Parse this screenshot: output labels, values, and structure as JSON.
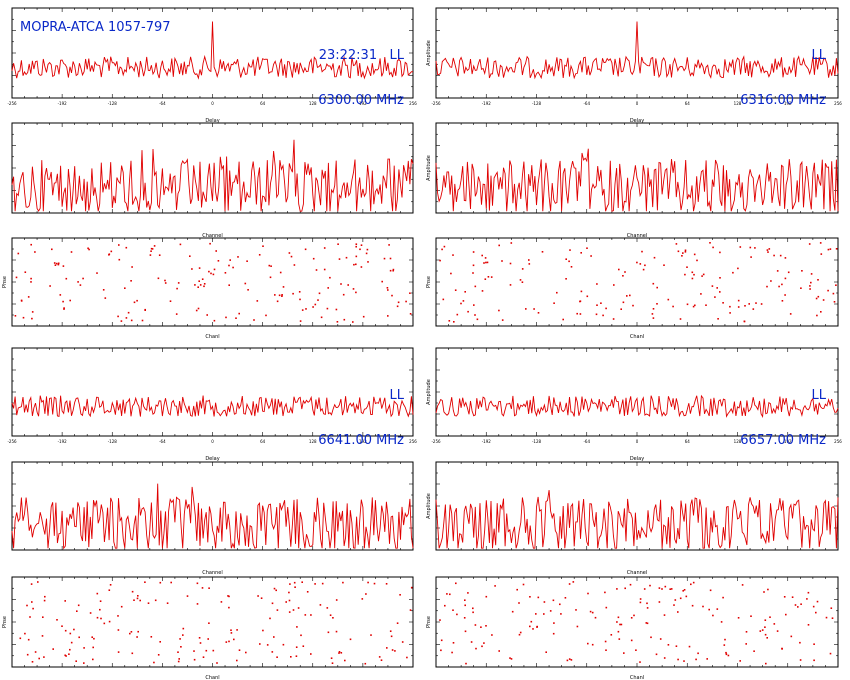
{
  "source_label": "MOPRA-ATCA 1057-797",
  "time": "23:22:31",
  "colors": {
    "trace": "#e00000",
    "axis": "#000000",
    "label": "#0a28c8",
    "background": "#ffffff"
  },
  "panels": [
    {
      "time": "23:22:31",
      "pol": "LL",
      "freq": "6300.00 MHz"
    },
    {
      "pol": "LL",
      "freq": "6316.00 MHz"
    },
    {
      "pol": "LL",
      "freq": "6641.00 MHz"
    },
    {
      "pol": "LL",
      "freq": "6657.00 MHz"
    }
  ],
  "chart_data": [
    {
      "type": "line",
      "panel": "6300.00 MHz delay spectrum",
      "xlabel": "Delay",
      "ylabel": "",
      "xlim": [
        -256,
        256
      ],
      "xticks": [
        "-256",
        "-192",
        "-128",
        "-64",
        "0",
        "64",
        "128",
        "192",
        "256"
      ],
      "feature": "single sharp spike at delay 0, noise elsewhere"
    },
    {
      "type": "line",
      "panel": "6316.00 MHz delay spectrum",
      "xlabel": "Delay",
      "ylabel": "Amplitude",
      "xlim": [
        -256,
        256
      ],
      "xticks": [
        "-256",
        "-192",
        "-128",
        "-64",
        "0",
        "64",
        "128",
        "192",
        "256"
      ],
      "feature": "single sharp spike at delay 0, noise elsewhere"
    },
    {
      "type": "line",
      "panel": "6300.00 MHz amplitude vs channel",
      "xlabel": "Channel",
      "ylabel": "",
      "xlim": [
        0,
        256
      ],
      "feature": "noise-like spectrum"
    },
    {
      "type": "line",
      "panel": "6316.00 MHz amplitude vs channel",
      "xlabel": "Channel",
      "ylabel": "Amplitude",
      "xlim": [
        0,
        256
      ],
      "feature": "noise-like spectrum"
    },
    {
      "type": "scatter",
      "panel": "6300.00 MHz phase vs channel",
      "xlabel": "Chanl",
      "ylabel": "Phse",
      "xlim": [
        0,
        256
      ],
      "feature": "random phase points"
    },
    {
      "type": "scatter",
      "panel": "6316.00 MHz phase vs channel",
      "xlabel": "Chanl",
      "ylabel": "Phse",
      "xlim": [
        0,
        256
      ],
      "feature": "random phase points"
    },
    {
      "type": "line",
      "panel": "6641.00 MHz delay spectrum",
      "xlabel": "Delay",
      "ylabel": "",
      "xlim": [
        -256,
        256
      ],
      "xticks": [
        "-256",
        "-192",
        "-128",
        "-64",
        "0",
        "64",
        "128",
        "192",
        "256"
      ],
      "feature": "noise only, no spike"
    },
    {
      "type": "line",
      "panel": "6657.00 MHz delay spectrum",
      "xlabel": "Delay",
      "ylabel": "Amplitude",
      "xlim": [
        -256,
        256
      ],
      "xticks": [
        "-256",
        "-192",
        "-128",
        "-64",
        "0",
        "64",
        "128",
        "192",
        "256"
      ],
      "feature": "noise only, no spike"
    },
    {
      "type": "line",
      "panel": "6641.00 MHz amplitude vs channel",
      "xlabel": "Channel",
      "ylabel": "",
      "xlim": [
        0,
        256
      ],
      "feature": "noise-like spectrum"
    },
    {
      "type": "line",
      "panel": "6657.00 MHz amplitude vs channel",
      "xlabel": "Channel",
      "ylabel": "Amplitude",
      "xlim": [
        0,
        256
      ],
      "feature": "noise-like spectrum"
    },
    {
      "type": "scatter",
      "panel": "6641.00 MHz phase vs channel",
      "xlabel": "Chanl",
      "ylabel": "Phse",
      "xlim": [
        0,
        256
      ],
      "feature": "random phase points"
    },
    {
      "type": "scatter",
      "panel": "6657.00 MHz phase vs channel",
      "xlabel": "Chanl",
      "ylabel": "Phse",
      "xlim": [
        0,
        256
      ],
      "feature": "random phase points"
    }
  ]
}
